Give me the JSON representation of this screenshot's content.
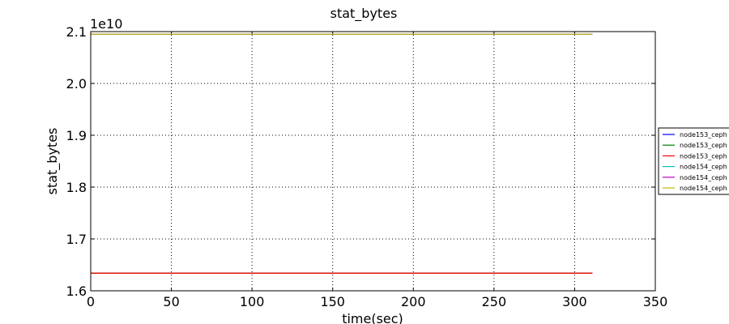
{
  "chart_data": {
    "type": "line",
    "title": "stat_bytes",
    "xlabel": "time(sec)",
    "ylabel": "stat_bytes",
    "y_multiplier_label": "1e10",
    "xlim": [
      0,
      350
    ],
    "ylim": [
      1.6,
      2.1
    ],
    "xticks": [
      "0",
      "50",
      "100",
      "150",
      "200",
      "250",
      "300",
      "350"
    ],
    "yticks": [
      "1.6",
      "1.7",
      "1.8",
      "1.9",
      "2.0",
      "2.1"
    ],
    "grid": true,
    "legend_placement": "right",
    "series": [
      {
        "name": "node153_ceph",
        "color": "#0000ff",
        "x": [
          0,
          311
        ],
        "y": [
          1.634,
          1.634
        ]
      },
      {
        "name": "node153_ceph",
        "color": "#008000",
        "x": [
          0,
          311
        ],
        "y": [
          1.634,
          1.634
        ]
      },
      {
        "name": "node153_ceph",
        "color": "#ff0000",
        "x": [
          0,
          311
        ],
        "y": [
          1.634,
          1.634
        ]
      },
      {
        "name": "node154_ceph",
        "color": "#00bfbf",
        "x": [
          0,
          311
        ],
        "y": [
          2.095,
          2.095
        ]
      },
      {
        "name": "node154_ceph",
        "color": "#bf00bf",
        "x": [
          0,
          311
        ],
        "y": [
          2.095,
          2.095
        ]
      },
      {
        "name": "node154_ceph",
        "color": "#bfbf00",
        "x": [
          0,
          311
        ],
        "y": [
          2.095,
          2.095
        ]
      }
    ]
  }
}
